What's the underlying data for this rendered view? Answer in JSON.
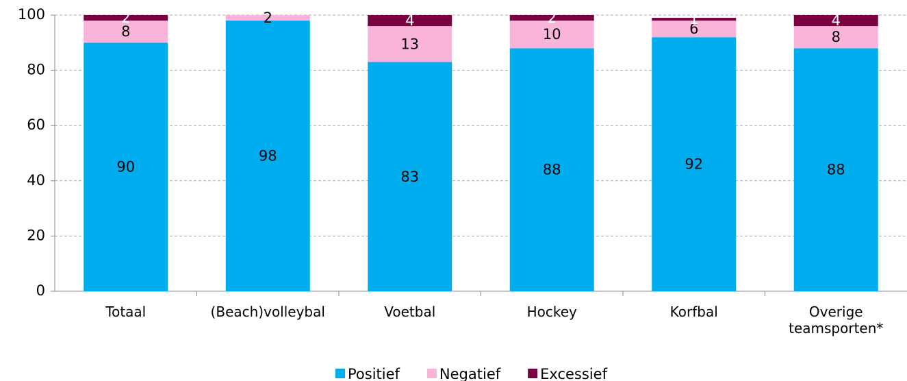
{
  "chart_data": {
    "type": "stacked_bar",
    "categories": [
      "Totaal",
      "(Beach)volleybal",
      "Voetbal",
      "Hockey",
      "Korfbal",
      "Overige teamsporten*"
    ],
    "series": [
      {
        "name": "Positief",
        "color": "#00adef",
        "values": [
          90,
          98,
          83,
          88,
          92,
          88
        ]
      },
      {
        "name": "Negatief",
        "color": "#fbb4d9",
        "values": [
          8,
          2,
          13,
          10,
          6,
          8
        ]
      },
      {
        "name": "Excessief",
        "color": "#7b0041",
        "values": [
          2,
          null,
          4,
          2,
          1,
          4
        ]
      }
    ],
    "ylim": [
      0,
      100
    ],
    "yticks": [
      0,
      20,
      40,
      60,
      80,
      100
    ],
    "grid": true,
    "legend": "bottom"
  }
}
